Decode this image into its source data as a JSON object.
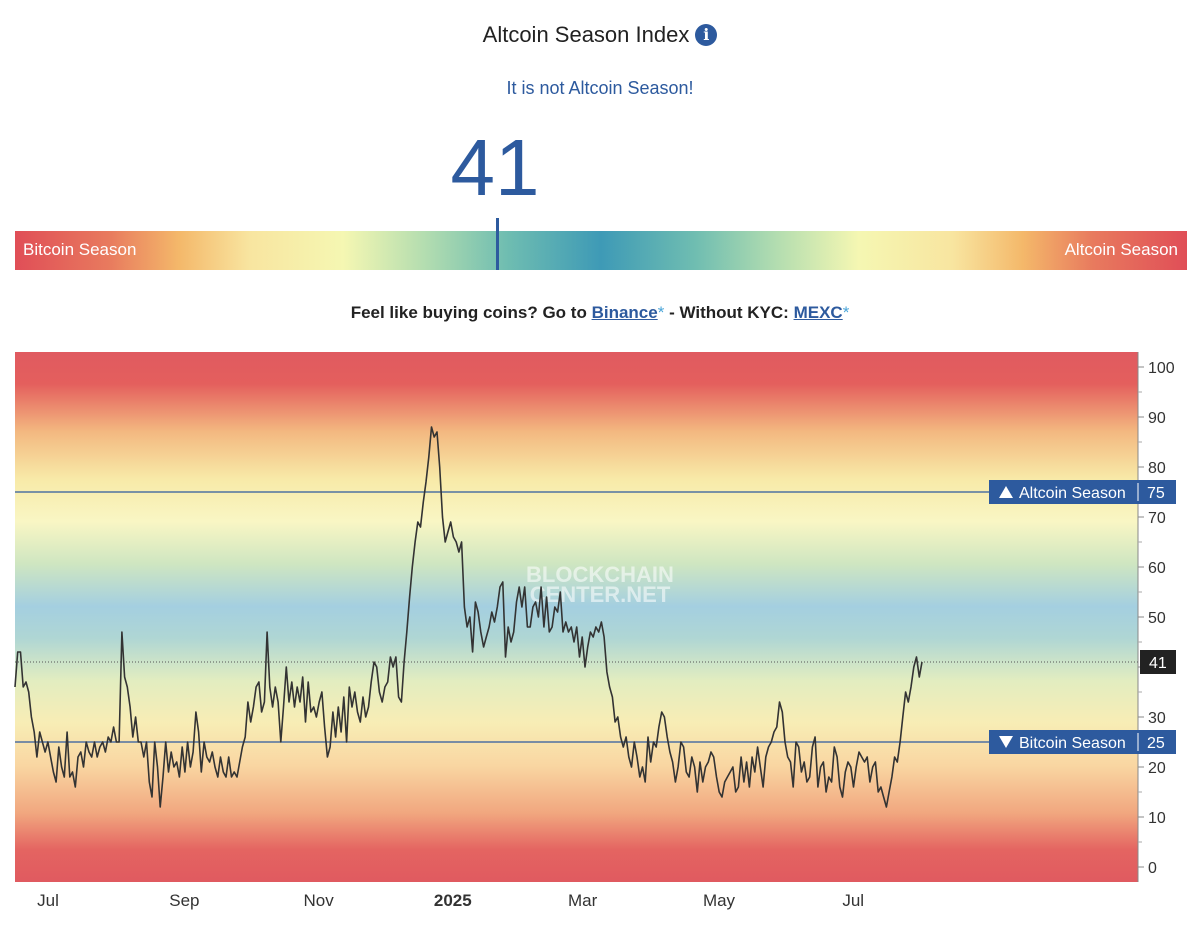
{
  "header": {
    "title": "Altcoin Season Index",
    "subtitle": "It is not Altcoin Season!",
    "current_value": "41"
  },
  "gauge": {
    "left_label": "Bitcoin Season",
    "right_label": "Altcoin Season",
    "value": 41
  },
  "promo": {
    "prefix": "Feel like buying coins? Go to",
    "binance_label": "Binance",
    "middle": "- Without KYC:",
    "mexc_label": "MEXC",
    "star": "*"
  },
  "watermark": {
    "line1": "BLOCKCHAIN",
    "line2": "CENTER.NET"
  },
  "chart_data": {
    "type": "line",
    "ylim": [
      0,
      100
    ],
    "y_ticks": [
      0,
      10,
      20,
      30,
      40,
      50,
      60,
      70,
      80,
      90,
      100
    ],
    "x_ticks": [
      "Jul",
      "Sep",
      "Nov",
      "2025",
      "Mar",
      "May",
      "Jul"
    ],
    "x_tick_days": [
      15,
      77,
      138,
      199,
      258,
      320,
      381
    ],
    "reference_lines": [
      {
        "label": "Altcoin Season",
        "value": 75,
        "arrow": "up"
      },
      {
        "label": "Bitcoin Season",
        "value": 25,
        "arrow": "down"
      }
    ],
    "current_label": "41",
    "series": [
      {
        "values": [
          36,
          43,
          43,
          36,
          37,
          35,
          30,
          27,
          22,
          27,
          25,
          23,
          25,
          22,
          19,
          17,
          24,
          20,
          18,
          27,
          18,
          19,
          16,
          22,
          23,
          20,
          25,
          23,
          22,
          25,
          22,
          24,
          25,
          23,
          26,
          25,
          28,
          25,
          25,
          47,
          38,
          36,
          32,
          26,
          30,
          25,
          25,
          22,
          25,
          17,
          14,
          25,
          20,
          12,
          18,
          25,
          19,
          23,
          20,
          21,
          18,
          24,
          19,
          25,
          20,
          23,
          31,
          27,
          19,
          25,
          22,
          21,
          23,
          20,
          18,
          22,
          19,
          18,
          22,
          18,
          19,
          18,
          21,
          24,
          26,
          33,
          29,
          32,
          36,
          37,
          31,
          33,
          47,
          36,
          32,
          36,
          33,
          25,
          32,
          40,
          33,
          37,
          32,
          36,
          33,
          38,
          29,
          37,
          31,
          32,
          30,
          33,
          35,
          28,
          22,
          24,
          31,
          26,
          32,
          27,
          34,
          25,
          36,
          32,
          35,
          31,
          29,
          34,
          30,
          32,
          37,
          41,
          40,
          35,
          33,
          36,
          37,
          42,
          40,
          42,
          34,
          33,
          41,
          47,
          54,
          60,
          65,
          69,
          68,
          73,
          77,
          82,
          88,
          86,
          87,
          80,
          70,
          65,
          67,
          69,
          66,
          65,
          63,
          65,
          52,
          48,
          50,
          43,
          53,
          51,
          47,
          44,
          46,
          48,
          51,
          49,
          52,
          56,
          57,
          42,
          48,
          45,
          47,
          53,
          56,
          52,
          56,
          48,
          48,
          52,
          53,
          50,
          56,
          48,
          54,
          47,
          48,
          52,
          51,
          55,
          47,
          49,
          47,
          48,
          45,
          48,
          42,
          46,
          40,
          44,
          47,
          46,
          48,
          47,
          49,
          46,
          39,
          36,
          34,
          29,
          30,
          26,
          24,
          26,
          22,
          20,
          25,
          22,
          18,
          20,
          17,
          26,
          21,
          25,
          24,
          28,
          31,
          30,
          26,
          23,
          21,
          17,
          20,
          25,
          24,
          19,
          18,
          22,
          20,
          15,
          21,
          17,
          20,
          21,
          23,
          22,
          18,
          15,
          14,
          17,
          18,
          19,
          20,
          15,
          16,
          22,
          17,
          21,
          16,
          22,
          19,
          24,
          20,
          16,
          22,
          24,
          25,
          27,
          28,
          33,
          31,
          25,
          22,
          21,
          16,
          25,
          24,
          19,
          21,
          17,
          18,
          24,
          26,
          16,
          20,
          21,
          15,
          18,
          17,
          24,
          22,
          16,
          14,
          19,
          21,
          20,
          16,
          20,
          23,
          22,
          21,
          22,
          17,
          20,
          21,
          15,
          16,
          14,
          12,
          15,
          18,
          22,
          21,
          25,
          30,
          35,
          33,
          36,
          40,
          42,
          38,
          41
        ]
      }
    ]
  }
}
